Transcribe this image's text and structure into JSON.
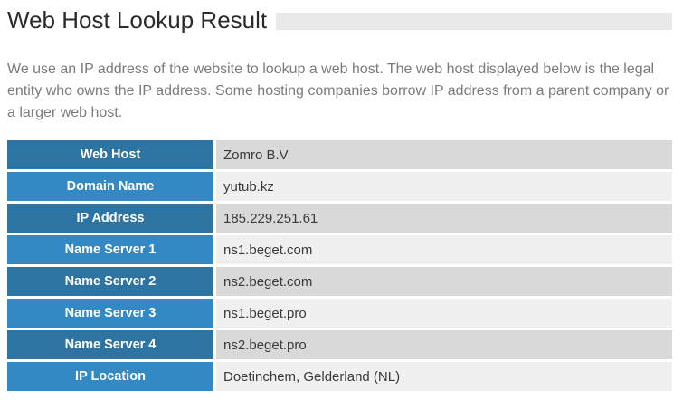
{
  "header": {
    "title": "Web Host Lookup Result"
  },
  "intro": {
    "text": "We use an IP address of the website to lookup a web host. The web host displayed below is the legal entity who owns the IP address. Some hosting companies borrow IP address from a parent company or a larger web host."
  },
  "table": {
    "rows": [
      {
        "label": "Web Host",
        "value": "Zomro B.V"
      },
      {
        "label": "Domain Name",
        "value": "yutub.kz"
      },
      {
        "label": "IP Address",
        "value": "185.229.251.61"
      },
      {
        "label": "Name Server 1",
        "value": "ns1.beget.com"
      },
      {
        "label": "Name Server 2",
        "value": "ns2.beget.com"
      },
      {
        "label": "Name Server 3",
        "value": "ns1.beget.pro"
      },
      {
        "label": "Name Server 4",
        "value": "ns2.beget.pro"
      },
      {
        "label": "IP Location",
        "value": "Doetinchem, Gelderland (NL)"
      }
    ]
  },
  "colors": {
    "header_dark_blue": "#2d74a2",
    "header_light_blue": "#3389c4",
    "value_gray": "#d9d9d9",
    "value_light": "#f0f0f0",
    "title_bar_gray": "#e8e8e8",
    "text_gray": "#7b7b7b"
  }
}
